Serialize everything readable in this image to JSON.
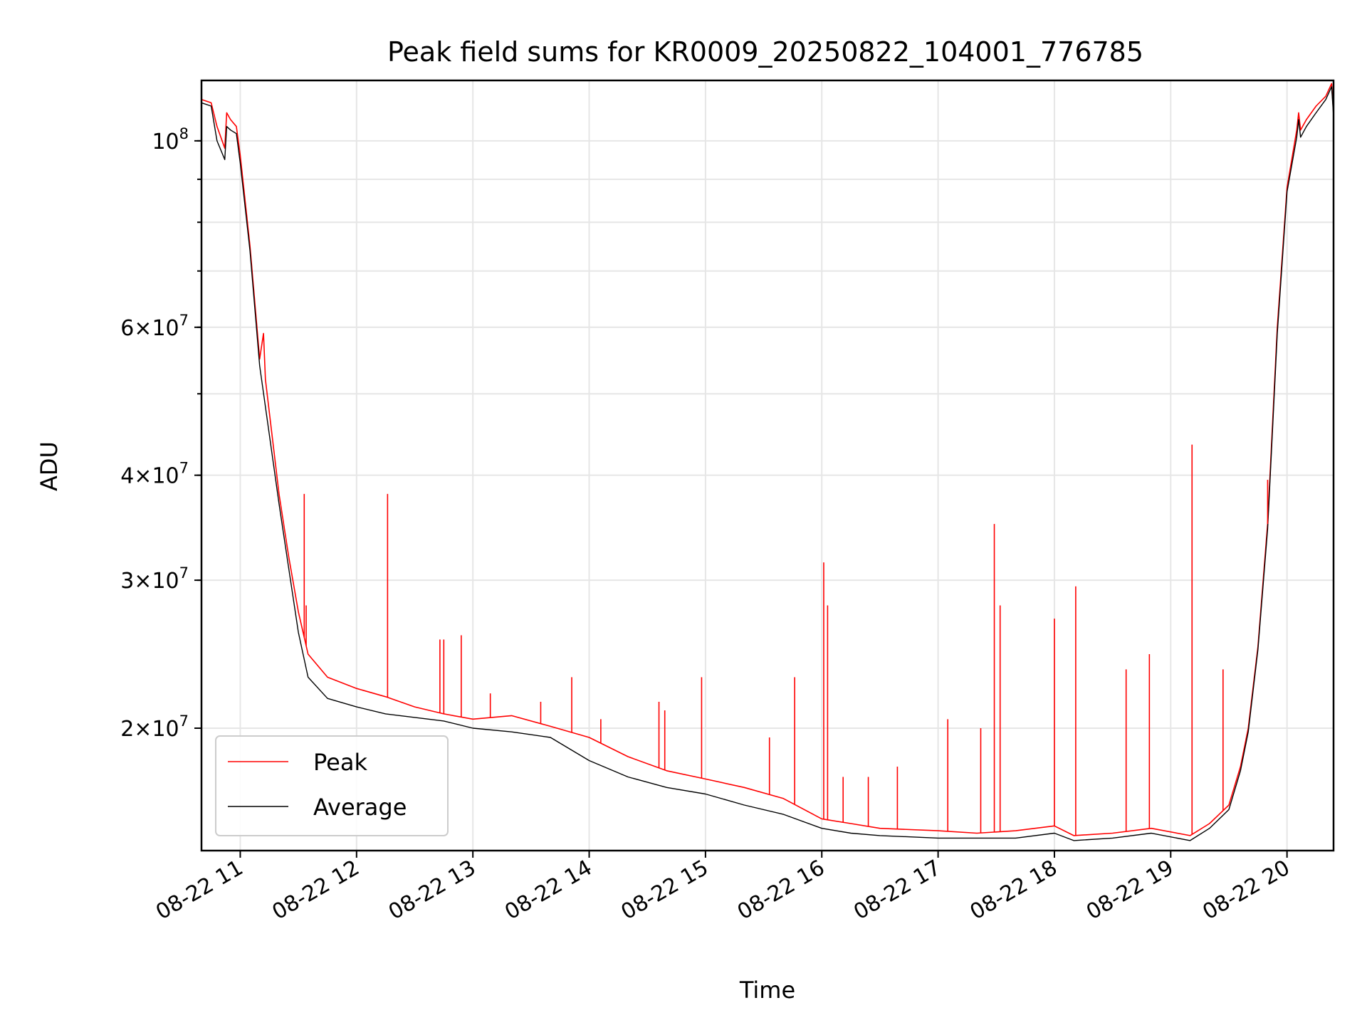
{
  "chart_data": {
    "type": "line",
    "title": "Peak field sums for KR0009_20250822_104001_776785",
    "xlabel": "Time",
    "ylabel": "ADU",
    "yscale": "log",
    "xlim": [
      "2025-08-22 10:40",
      "2025-08-22 20:24"
    ],
    "ylim": [
      14300000,
      118000000
    ],
    "grid": true,
    "legend_position": "lower-left",
    "x_ticks": [
      {
        "time": "11:00",
        "label": "08-22 11"
      },
      {
        "time": "12:00",
        "label": "08-22 12"
      },
      {
        "time": "13:00",
        "label": "08-22 13"
      },
      {
        "time": "14:00",
        "label": "08-22 14"
      },
      {
        "time": "15:00",
        "label": "08-22 15"
      },
      {
        "time": "16:00",
        "label": "08-22 16"
      },
      {
        "time": "17:00",
        "label": "08-22 17"
      },
      {
        "time": "18:00",
        "label": "08-22 18"
      },
      {
        "time": "19:00",
        "label": "08-22 19"
      },
      {
        "time": "20:00",
        "label": "08-22 20"
      }
    ],
    "y_ticks": [
      {
        "value": 20000000,
        "mantissa": "2",
        "exp": "7"
      },
      {
        "value": 30000000,
        "mantissa": "3",
        "exp": "7"
      },
      {
        "value": 40000000,
        "mantissa": "4",
        "exp": "7"
      },
      {
        "value": 60000000,
        "mantissa": "6",
        "exp": "7"
      },
      {
        "value": 100000000,
        "mantissa": "",
        "exp": "8"
      }
    ],
    "series": [
      {
        "name": "Peak",
        "color": "#ff0000",
        "points": [
          [
            "10:40",
            112000000
          ],
          [
            "10:45",
            111000000
          ],
          [
            "10:48",
            104000000
          ],
          [
            "10:52",
            98000000
          ],
          [
            "10:53",
            108000000
          ],
          [
            "10:55",
            106000000
          ],
          [
            "10:58",
            104000000
          ],
          [
            "11:00",
            96000000
          ],
          [
            "11:05",
            75000000
          ],
          [
            "11:10",
            55000000
          ],
          [
            "11:12",
            59000000
          ],
          [
            "11:13",
            52000000
          ],
          [
            "11:20",
            38000000
          ],
          [
            "11:25",
            32000000
          ],
          [
            "11:30",
            27500000
          ],
          [
            "11:35",
            24500000
          ],
          [
            "11:45",
            23000000
          ],
          [
            "12:00",
            22300000
          ],
          [
            "12:15",
            21800000
          ],
          [
            "12:30",
            21200000
          ],
          [
            "12:45",
            20800000
          ],
          [
            "13:00",
            20500000
          ],
          [
            "13:20",
            20700000
          ],
          [
            "13:40",
            20100000
          ],
          [
            "14:00",
            19500000
          ],
          [
            "14:20",
            18500000
          ],
          [
            "14:40",
            17800000
          ],
          [
            "15:00",
            17400000
          ],
          [
            "15:20",
            17000000
          ],
          [
            "15:40",
            16500000
          ],
          [
            "16:00",
            15600000
          ],
          [
            "16:15",
            15400000
          ],
          [
            "16:30",
            15200000
          ],
          [
            "17:00",
            15100000
          ],
          [
            "17:20",
            15000000
          ],
          [
            "17:40",
            15100000
          ],
          [
            "18:00",
            15300000
          ],
          [
            "18:10",
            14900000
          ],
          [
            "18:30",
            15000000
          ],
          [
            "18:50",
            15200000
          ],
          [
            "19:10",
            14900000
          ],
          [
            "19:20",
            15400000
          ],
          [
            "19:30",
            16200000
          ],
          [
            "19:36",
            18000000
          ],
          [
            "19:40",
            20000000
          ],
          [
            "19:45",
            25000000
          ],
          [
            "19:50",
            35000000
          ],
          [
            "19:55",
            60000000
          ],
          [
            "20:00",
            88000000
          ],
          [
            "20:05",
            103000000
          ],
          [
            "20:06",
            108000000
          ],
          [
            "20:07",
            103000000
          ],
          [
            "20:10",
            106000000
          ],
          [
            "20:15",
            110000000
          ],
          [
            "20:20",
            113000000
          ],
          [
            "20:23",
            117000000
          ],
          [
            "20:24",
            108000000
          ]
        ]
      },
      {
        "name": "Average",
        "color": "#000000",
        "points": [
          [
            "10:40",
            111000000
          ],
          [
            "10:45",
            110000000
          ],
          [
            "10:48",
            100000000
          ],
          [
            "10:52",
            95000000
          ],
          [
            "10:53",
            104000000
          ],
          [
            "10:55",
            103000000
          ],
          [
            "10:58",
            102000000
          ],
          [
            "11:00",
            94000000
          ],
          [
            "11:05",
            74000000
          ],
          [
            "11:10",
            54000000
          ],
          [
            "11:20",
            37000000
          ],
          [
            "11:25",
            31000000
          ],
          [
            "11:30",
            26000000
          ],
          [
            "11:35",
            23000000
          ],
          [
            "11:45",
            21700000
          ],
          [
            "12:00",
            21200000
          ],
          [
            "12:15",
            20800000
          ],
          [
            "12:30",
            20600000
          ],
          [
            "12:45",
            20400000
          ],
          [
            "13:00",
            20000000
          ],
          [
            "13:20",
            19800000
          ],
          [
            "13:40",
            19500000
          ],
          [
            "14:00",
            18300000
          ],
          [
            "14:20",
            17500000
          ],
          [
            "14:40",
            17000000
          ],
          [
            "15:00",
            16700000
          ],
          [
            "15:20",
            16200000
          ],
          [
            "15:40",
            15800000
          ],
          [
            "16:00",
            15200000
          ],
          [
            "16:15",
            15000000
          ],
          [
            "16:30",
            14900000
          ],
          [
            "17:00",
            14800000
          ],
          [
            "17:20",
            14800000
          ],
          [
            "17:40",
            14800000
          ],
          [
            "18:00",
            15000000
          ],
          [
            "18:10",
            14700000
          ],
          [
            "18:30",
            14800000
          ],
          [
            "18:50",
            15000000
          ],
          [
            "19:10",
            14700000
          ],
          [
            "19:20",
            15200000
          ],
          [
            "19:30",
            16000000
          ],
          [
            "19:36",
            17800000
          ],
          [
            "19:40",
            19800000
          ],
          [
            "19:45",
            24800000
          ],
          [
            "19:50",
            34500000
          ],
          [
            "19:55",
            59000000
          ],
          [
            "20:00",
            87000000
          ],
          [
            "20:05",
            101000000
          ],
          [
            "20:06",
            106000000
          ],
          [
            "20:07",
            101000000
          ],
          [
            "20:10",
            104000000
          ],
          [
            "20:15",
            108000000
          ],
          [
            "20:20",
            112000000
          ],
          [
            "20:23",
            116000000
          ],
          [
            "20:24",
            107000000
          ]
        ]
      }
    ],
    "peak_spikes": [
      [
        "11:33",
        38000000
      ],
      [
        "11:34",
        28000000
      ],
      [
        "12:16",
        38000000
      ],
      [
        "12:43",
        25500000
      ],
      [
        "12:45",
        25500000
      ],
      [
        "12:54",
        25800000
      ],
      [
        "13:09",
        22000000
      ],
      [
        "13:35",
        21500000
      ],
      [
        "13:51",
        23000000
      ],
      [
        "14:06",
        20500000
      ],
      [
        "14:36",
        21500000
      ],
      [
        "14:39",
        21000000
      ],
      [
        "14:58",
        23000000
      ],
      [
        "15:33",
        19500000
      ],
      [
        "15:46",
        23000000
      ],
      [
        "16:01",
        31500000
      ],
      [
        "16:03",
        28000000
      ],
      [
        "16:11",
        17500000
      ],
      [
        "16:24",
        17500000
      ],
      [
        "16:39",
        18000000
      ],
      [
        "17:05",
        20500000
      ],
      [
        "17:22",
        20000000
      ],
      [
        "17:29",
        35000000
      ],
      [
        "17:32",
        28000000
      ],
      [
        "18:00",
        27000000
      ],
      [
        "18:11",
        29500000
      ],
      [
        "18:37",
        23500000
      ],
      [
        "18:49",
        24500000
      ],
      [
        "19:11",
        43500000
      ],
      [
        "19:27",
        23500000
      ],
      [
        "19:50",
        39500000
      ]
    ],
    "legend": [
      {
        "name": "Peak",
        "color": "#ff0000"
      },
      {
        "name": "Average",
        "color": "#000000"
      }
    ]
  }
}
